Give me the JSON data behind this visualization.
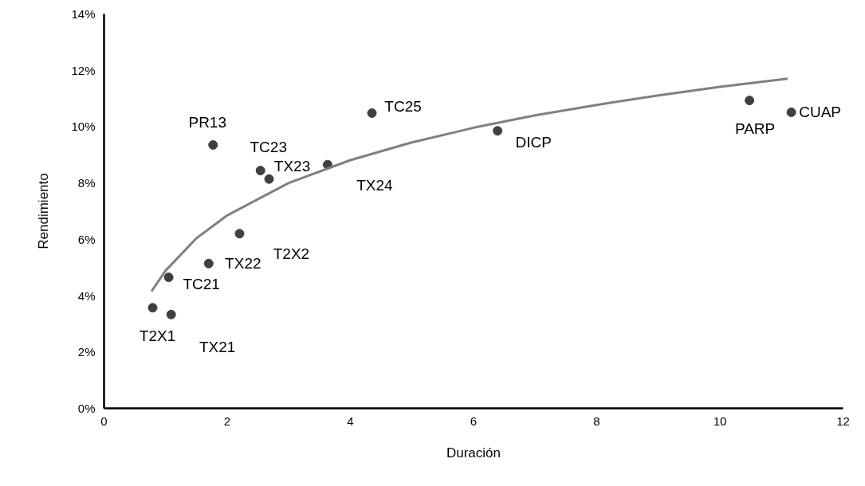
{
  "chart_data": {
    "type": "scatter",
    "xlabel": "Duración",
    "ylabel": "Rendimiento",
    "x": [
      0.79,
      1.09,
      1.05,
      1.7,
      2.2,
      1.77,
      2.54,
      2.68,
      3.63,
      4.35,
      6.39,
      10.48,
      11.16
    ],
    "series": [
      {
        "color": "#404040",
        "marker": "circle",
        "values": [
          3.57,
          3.33,
          4.65,
          5.14,
          6.2,
          9.35,
          8.44,
          8.14,
          8.65,
          10.48,
          9.85,
          10.93,
          10.51
        ]
      },
      {
        "type": "line",
        "color": "#808080",
        "marker": "none",
        "x": [
          0.77,
          1,
          1.5,
          2,
          3,
          4,
          5,
          6,
          7,
          8,
          9,
          10,
          11.1
        ],
        "values": [
          4.15,
          4.89,
          6.04,
          6.85,
          8.0,
          8.81,
          9.44,
          9.96,
          10.4,
          10.77,
          11.11,
          11.41,
          11.7
        ]
      }
    ],
    "annotations": [
      {
        "text": "T2X1",
        "x": 0.79,
        "y": 3.57
      },
      {
        "text": "TX21",
        "x": 1.09,
        "y": 3.33
      },
      {
        "text": "TC21",
        "x": 1.05,
        "y": 4.65
      },
      {
        "text": "TX22",
        "x": 1.7,
        "y": 5.14
      },
      {
        "text": "T2X2",
        "x": 2.2,
        "y": 6.2
      },
      {
        "text": "PR13",
        "x": 1.77,
        "y": 9.35
      },
      {
        "text": "TC23",
        "x": 2.54,
        "y": 8.44
      },
      {
        "text": "TX23",
        "x": 2.68,
        "y": 8.14
      },
      {
        "text": "TX24",
        "x": 3.63,
        "y": 8.65
      },
      {
        "text": "TC25",
        "x": 4.35,
        "y": 10.48
      },
      {
        "text": "DICP",
        "x": 6.39,
        "y": 9.85
      },
      {
        "text": "PARP",
        "x": 10.48,
        "y": 10.93
      },
      {
        "text": "CUAP",
        "x": 11.16,
        "y": 10.51
      }
    ],
    "xlim": [
      0,
      12
    ],
    "xticks": [
      0,
      2,
      4,
      6,
      8,
      10,
      12
    ],
    "ylim": [
      0,
      14
    ],
    "yticks": [
      {
        "value": 0,
        "label": "0%"
      },
      {
        "value": 2,
        "label": "2%"
      },
      {
        "value": 4,
        "label": "4%"
      },
      {
        "value": 6,
        "label": "6%"
      },
      {
        "value": 8,
        "label": "8%"
      },
      {
        "value": 10,
        "label": "10%"
      },
      {
        "value": 12,
        "label": "12%"
      },
      {
        "value": 14,
        "label": "14%"
      }
    ],
    "grid": false
  }
}
